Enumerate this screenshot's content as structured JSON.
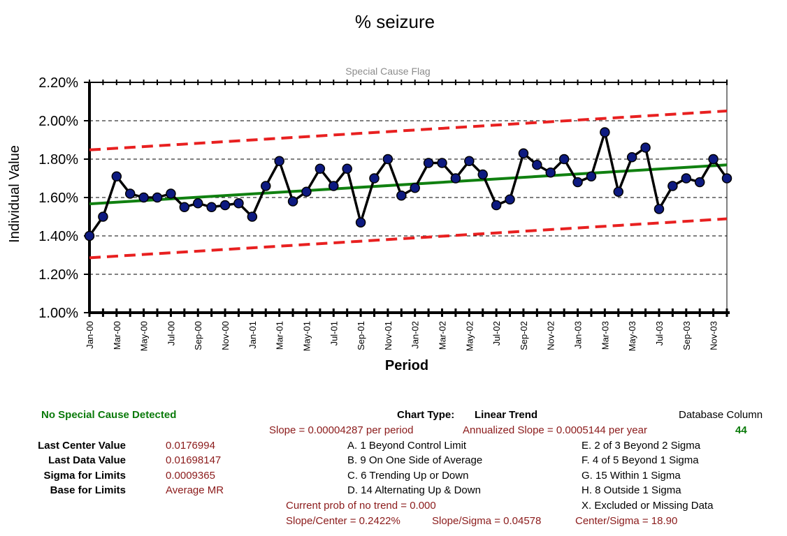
{
  "chart_data": {
    "type": "line",
    "title": "% seizure",
    "subtitle": "Special Cause Flag",
    "xlabel": "Period",
    "ylabel": "Individual Value",
    "ylim": [
      0.01,
      0.022
    ],
    "yticks": [
      0.01,
      0.012,
      0.014,
      0.016,
      0.018,
      0.02,
      0.022
    ],
    "ytick_labels": [
      "1.00%",
      "1.20%",
      "1.40%",
      "1.60%",
      "1.80%",
      "2.00%",
      "2.20%"
    ],
    "grid": true,
    "xtick_labels": [
      "Jan-00",
      "Mar-00",
      "May-00",
      "Jul-00",
      "Sep-00",
      "Nov-00",
      "Jan-01",
      "Mar-01",
      "May-01",
      "Jul-01",
      "Sep-01",
      "Nov-01",
      "Jan-02",
      "Mar-02",
      "May-02",
      "Jul-02",
      "Sep-02",
      "Nov-02",
      "Jan-03",
      "Mar-03",
      "May-03",
      "Jul-03",
      "Sep-03",
      "Nov-03"
    ],
    "x": [
      "Jan-00",
      "Feb-00",
      "Mar-00",
      "Apr-00",
      "May-00",
      "Jun-00",
      "Jul-00",
      "Aug-00",
      "Sep-00",
      "Oct-00",
      "Nov-00",
      "Dec-00",
      "Jan-01",
      "Feb-01",
      "Mar-01",
      "Apr-01",
      "May-01",
      "Jun-01",
      "Jul-01",
      "Aug-01",
      "Sep-01",
      "Oct-01",
      "Nov-01",
      "Dec-01",
      "Jan-02",
      "Feb-02",
      "Mar-02",
      "Apr-02",
      "May-02",
      "Jun-02",
      "Jul-02",
      "Aug-02",
      "Sep-02",
      "Oct-02",
      "Nov-02",
      "Dec-02",
      "Jan-03",
      "Feb-03",
      "Mar-03",
      "Apr-03",
      "May-03",
      "Jun-03",
      "Jul-03",
      "Aug-03",
      "Sep-03",
      "Oct-03",
      "Nov-03",
      "Dec-03"
    ],
    "series": [
      {
        "role": "data",
        "color": "#000000",
        "marker_color": "#0d1a80",
        "values": [
          0.014,
          0.015,
          0.0171,
          0.0162,
          0.016,
          0.016,
          0.0162,
          0.0155,
          0.0157,
          0.0155,
          0.0156,
          0.0157,
          0.015,
          0.0166,
          0.0179,
          0.0158,
          0.0163,
          0.0175,
          0.0166,
          0.0175,
          0.0147,
          0.017,
          0.018,
          0.0161,
          0.0165,
          0.0178,
          0.0178,
          0.017,
          0.0179,
          0.0172,
          0.0156,
          0.0159,
          0.0183,
          0.0177,
          0.0173,
          0.018,
          0.0168,
          0.0171,
          0.0194,
          0.0163,
          0.0181,
          0.0186,
          0.0154,
          0.0166,
          0.017,
          0.0168,
          0.018,
          0.017
        ]
      },
      {
        "role": "center",
        "color": "#108010",
        "start": 0.01567,
        "end": 0.0177
      },
      {
        "role": "upper_limit",
        "color": "#e82020",
        "start": 0.01848,
        "end": 0.02051
      },
      {
        "role": "lower_limit",
        "color": "#e82020",
        "start": 0.01286,
        "end": 0.01489
      }
    ]
  },
  "summary": {
    "status": "No Special Cause Detected",
    "chart_type_label": "Chart Type:",
    "chart_type_value": "Linear Trend",
    "db_column_label": "Database Column",
    "db_column_value": "44",
    "slope_period": "Slope = 0.00004287 per period",
    "slope_annual": "Annualized Slope = 0.0005144 per year",
    "stats": [
      {
        "label": "Last Center Value",
        "value": "0.0176994"
      },
      {
        "label": "Last Data Value",
        "value": "0.01698147"
      },
      {
        "label": "Sigma for Limits",
        "value": "0.0009365"
      },
      {
        "label": "Base for Limits",
        "value": "Average MR"
      }
    ],
    "rules_left": [
      "A. 1 Beyond Control Limit",
      "B. 9 On One Side of Average",
      "C. 6 Trending Up or Down",
      "D. 14 Alternating  Up & Down"
    ],
    "rules_right": [
      "E. 2 of 3 Beyond 2 Sigma",
      "F. 4 of 5 Beyond 1 Sigma",
      "G. 15 Within 1 Sigma",
      "H. 8 Outside 1 Sigma",
      "X. Excluded or Missing Data"
    ],
    "trend_prob": "Current prob of no trend = 0.000",
    "slope_center": "Slope/Center = 0.2422%",
    "slope_sigma": "Slope/Sigma = 0.04578",
    "center_sigma": "Center/Sigma = 18.90"
  }
}
